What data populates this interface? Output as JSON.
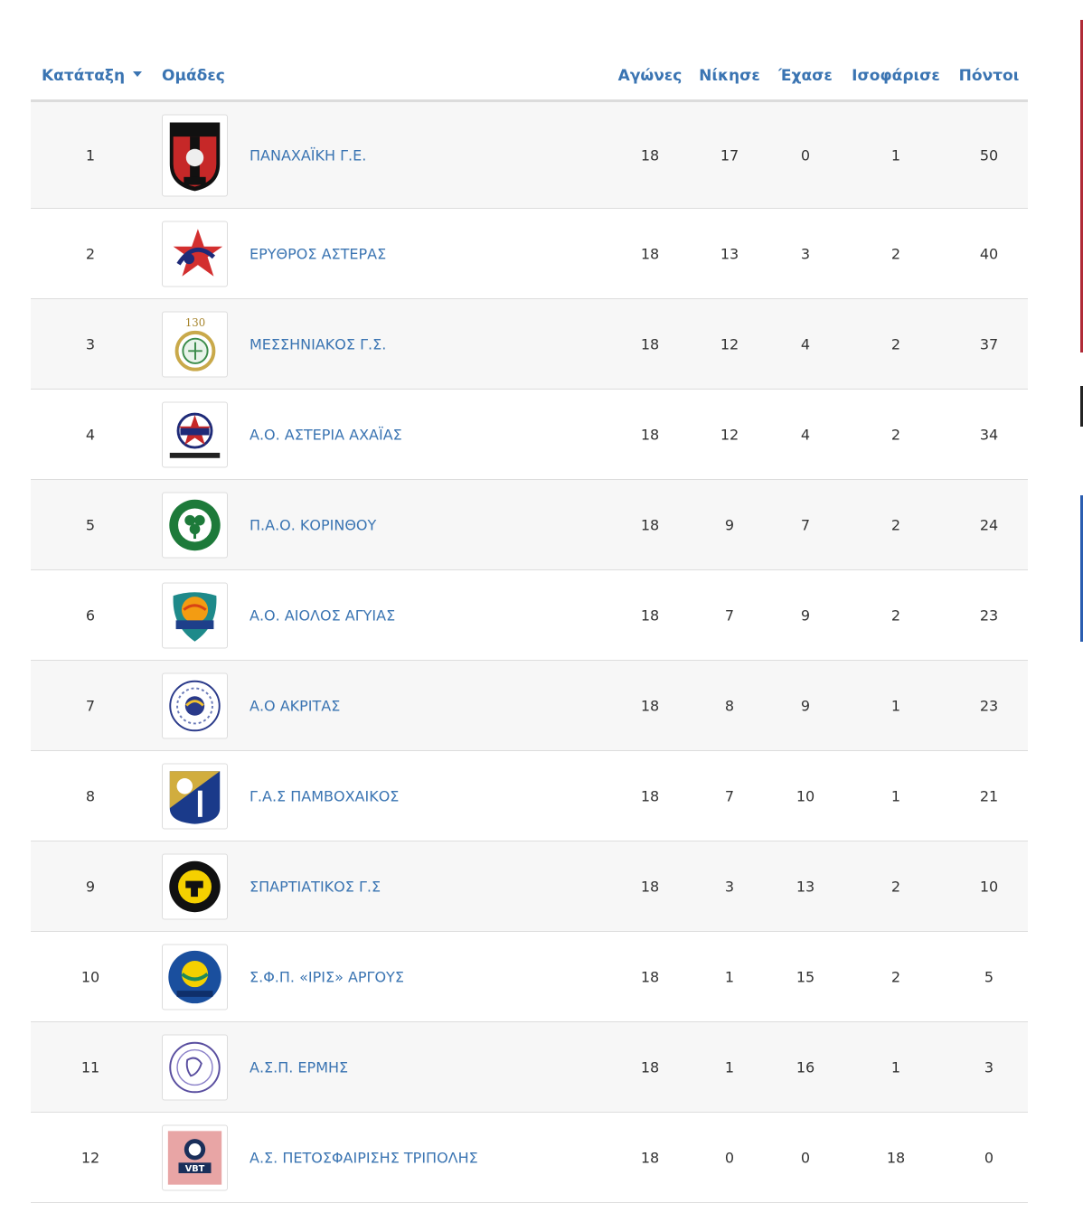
{
  "header": {
    "rank": "Κατάταξη",
    "teams": "Ομάδες",
    "played": "Αγώνες",
    "won": "Νίκησε",
    "lost": "Έχασε",
    "drawn": "Ισοφάρισε",
    "points": "Πόντοι"
  },
  "rows": [
    {
      "rank": "1",
      "team": "ΠΑΝΑΧΑΪΚΗ Γ.Ε.",
      "played": "18",
      "won": "17",
      "lost": "0",
      "drawn": "1",
      "points": "50",
      "logo": "panachaiki-logo"
    },
    {
      "rank": "2",
      "team": "ΕΡΥΘΡΟΣ ΑΣΤΕΡΑΣ",
      "played": "18",
      "won": "13",
      "lost": "3",
      "drawn": "2",
      "points": "40",
      "logo": "erythros-asteras-logo"
    },
    {
      "rank": "3",
      "team": "ΜΕΣΣΗΝΙΑΚΟΣ Γ.Σ.",
      "played": "18",
      "won": "12",
      "lost": "4",
      "drawn": "2",
      "points": "37",
      "logo": "messiniakos-logo"
    },
    {
      "rank": "4",
      "team": "Α.Ο. ΑΣΤΕΡΙΑ ΑΧΑΪΑΣ",
      "played": "18",
      "won": "12",
      "lost": "4",
      "drawn": "2",
      "points": "34",
      "logo": "asteria-logo"
    },
    {
      "rank": "5",
      "team": "Π.Α.Ο. ΚΟΡΙΝΘΟΥ",
      "played": "18",
      "won": "9",
      "lost": "7",
      "drawn": "2",
      "points": "24",
      "logo": "pao-korinthou-logo"
    },
    {
      "rank": "6",
      "team": "Α.Ο. ΑΙΟΛΟΣ ΑΓΥΙΑΣ",
      "played": "18",
      "won": "7",
      "lost": "9",
      "drawn": "2",
      "points": "23",
      "logo": "aiolos-logo"
    },
    {
      "rank": "7",
      "team": "Α.Ο ΑΚΡΙΤΑΣ",
      "played": "18",
      "won": "8",
      "lost": "9",
      "drawn": "1",
      "points": "23",
      "logo": "akritas-logo"
    },
    {
      "rank": "8",
      "team": "Γ.Α.Σ ΠΑΜΒΟΧΑΙΚΟΣ",
      "played": "18",
      "won": "7",
      "lost": "10",
      "drawn": "1",
      "points": "21",
      "logo": "pamvochaikos-logo"
    },
    {
      "rank": "9",
      "team": "ΣΠΑΡΤΙΑΤΙΚΟΣ Γ.Σ",
      "played": "18",
      "won": "3",
      "lost": "13",
      "drawn": "2",
      "points": "10",
      "logo": "spartiatikos-logo"
    },
    {
      "rank": "10",
      "team": "Σ.Φ.Π. «ΙΡΙΣ» ΑΡΓΟΥΣ",
      "played": "18",
      "won": "1",
      "lost": "15",
      "drawn": "2",
      "points": "5",
      "logo": "iris-logo"
    },
    {
      "rank": "11",
      "team": "Α.Σ.Π. ΕΡΜΗΣ",
      "played": "18",
      "won": "1",
      "lost": "16",
      "drawn": "1",
      "points": "3",
      "logo": "ermis-logo"
    },
    {
      "rank": "12",
      "team": "Α.Σ. ΠΕΤΟΣΦΑΙΡΙΣΗΣ ΤΡΙΠΟΛΗΣ",
      "played": "18",
      "won": "0",
      "lost": "0",
      "drawn": "18",
      "points": "0",
      "logo": "vbt-tripolis-logo"
    }
  ],
  "colors": {
    "link": "#3a74b2",
    "row_alt": "#f7f7f7",
    "border": "#dddddd"
  }
}
